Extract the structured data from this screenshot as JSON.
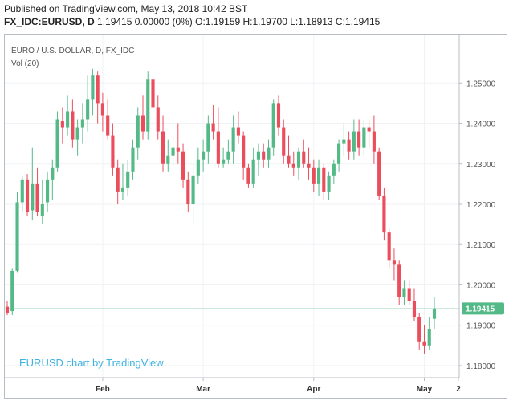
{
  "header": {
    "published": "Published on TradingView.com, May 13, 2018 10:42 BST",
    "symbol": "FX_IDC:EURUSD, D",
    "values": "1.19415 0.00000 (0%) O:1.19159 H:1.19700 L:1.18913 C:1.19415"
  },
  "chart": {
    "legend_title": "EURO / U.S. DOLLAR, D, FX_IDC",
    "legend_vol": "Vol (20)",
    "watermark": "EURUSD chart by TradingView",
    "price_badge": "1.19415"
  },
  "colors": {
    "up": "#53b987",
    "down": "#eb4d5c",
    "grid": "#f0f2f5",
    "watermark": "#3cb3e0"
  },
  "chart_data": {
    "type": "candlestick",
    "title": "EURO / U.S. DOLLAR, D, FX_IDC",
    "ylim": [
      1.177,
      1.262
    ],
    "y_ticks": [
      "1.25000",
      "1.24000",
      "1.23000",
      "1.22000",
      "1.21000",
      "1.20000",
      "1.19000",
      "1.18000"
    ],
    "x_ticks": [
      "Feb",
      "Mar",
      "Apr",
      "May",
      "2"
    ],
    "last_price": 1.19415,
    "candles": [
      [
        1.1946,
        1.196,
        1.1925,
        1.193
      ],
      [
        1.1935,
        1.204,
        1.1925,
        1.2035
      ],
      [
        1.2035,
        1.223,
        1.203,
        1.2205
      ],
      [
        1.2205,
        1.227,
        1.218,
        1.226
      ],
      [
        1.226,
        1.2275,
        1.217,
        1.218
      ],
      [
        1.2185,
        1.234,
        1.216,
        1.225
      ],
      [
        1.225,
        1.229,
        1.217,
        1.218
      ],
      [
        1.217,
        1.226,
        1.215,
        1.22
      ],
      [
        1.2205,
        1.228,
        1.218,
        1.226
      ],
      [
        1.226,
        1.231,
        1.221,
        1.229
      ],
      [
        1.229,
        1.243,
        1.228,
        1.241
      ],
      [
        1.2405,
        1.244,
        1.235,
        1.239
      ],
      [
        1.239,
        1.247,
        1.237,
        1.243
      ],
      [
        1.243,
        1.246,
        1.234,
        1.236
      ],
      [
        1.236,
        1.241,
        1.232,
        1.239
      ],
      [
        1.239,
        1.245,
        1.235,
        1.241
      ],
      [
        1.241,
        1.252,
        1.238,
        1.246
      ],
      [
        1.246,
        1.2535,
        1.242,
        1.252
      ],
      [
        1.252,
        1.253,
        1.24,
        1.245
      ],
      [
        1.245,
        1.2475,
        1.238,
        1.242
      ],
      [
        1.242,
        1.246,
        1.236,
        1.237
      ],
      [
        1.237,
        1.24,
        1.227,
        1.229
      ],
      [
        1.229,
        1.231,
        1.22,
        1.223
      ],
      [
        1.223,
        1.23,
        1.221,
        1.224
      ],
      [
        1.224,
        1.231,
        1.222,
        1.228
      ],
      [
        1.228,
        1.236,
        1.226,
        1.234
      ],
      [
        1.234,
        1.244,
        1.231,
        1.242
      ],
      [
        1.242,
        1.247,
        1.236,
        1.238
      ],
      [
        1.238,
        1.253,
        1.236,
        1.251
      ],
      [
        1.251,
        1.2555,
        1.242,
        1.244
      ],
      [
        1.244,
        1.247,
        1.236,
        1.238
      ],
      [
        1.238,
        1.242,
        1.228,
        1.23
      ],
      [
        1.23,
        1.236,
        1.228,
        1.232
      ],
      [
        1.232,
        1.237,
        1.229,
        1.234
      ],
      [
        1.234,
        1.24,
        1.23,
        1.233
      ],
      [
        1.233,
        1.235,
        1.224,
        1.226
      ],
      [
        1.226,
        1.228,
        1.218,
        1.22
      ],
      [
        1.22,
        1.23,
        1.215,
        1.227
      ],
      [
        1.227,
        1.234,
        1.225,
        1.231
      ],
      [
        1.231,
        1.236,
        1.228,
        1.233
      ],
      [
        1.233,
        1.242,
        1.23,
        1.24
      ],
      [
        1.24,
        1.2445,
        1.236,
        1.238
      ],
      [
        1.238,
        1.244,
        1.229,
        1.23
      ],
      [
        1.23,
        1.234,
        1.229,
        1.231
      ],
      [
        1.231,
        1.236,
        1.23,
        1.233
      ],
      [
        1.233,
        1.242,
        1.23,
        1.239
      ],
      [
        1.239,
        1.243,
        1.235,
        1.237
      ],
      [
        1.237,
        1.238,
        1.226,
        1.229
      ],
      [
        1.229,
        1.23,
        1.224,
        1.225
      ],
      [
        1.225,
        1.234,
        1.224,
        1.231
      ],
      [
        1.231,
        1.235,
        1.227,
        1.233
      ],
      [
        1.233,
        1.235,
        1.229,
        1.231
      ],
      [
        1.231,
        1.236,
        1.229,
        1.234
      ],
      [
        1.234,
        1.246,
        1.232,
        1.245
      ],
      [
        1.245,
        1.247,
        1.237,
        1.239
      ],
      [
        1.239,
        1.241,
        1.23,
        1.232
      ],
      [
        1.232,
        1.237,
        1.229,
        1.23
      ],
      [
        1.23,
        1.233,
        1.227,
        1.229
      ],
      [
        1.229,
        1.234,
        1.226,
        1.233
      ],
      [
        1.233,
        1.236,
        1.229,
        1.23
      ],
      [
        1.23,
        1.234,
        1.226,
        1.229
      ],
      [
        1.229,
        1.231,
        1.223,
        1.225
      ],
      [
        1.225,
        1.231,
        1.222,
        1.229
      ],
      [
        1.229,
        1.23,
        1.221,
        1.223
      ],
      [
        1.223,
        1.228,
        1.221,
        1.227
      ],
      [
        1.227,
        1.231,
        1.225,
        1.23
      ],
      [
        1.23,
        1.236,
        1.228,
        1.235
      ],
      [
        1.235,
        1.24,
        1.232,
        1.236
      ],
      [
        1.236,
        1.238,
        1.231,
        1.233
      ],
      [
        1.233,
        1.241,
        1.231,
        1.238
      ],
      [
        1.238,
        1.241,
        1.232,
        1.234
      ],
      [
        1.234,
        1.241,
        1.232,
        1.239
      ],
      [
        1.239,
        1.241,
        1.234,
        1.238
      ],
      [
        1.238,
        1.242,
        1.23,
        1.233
      ],
      [
        1.233,
        1.234,
        1.221,
        1.222
      ],
      [
        1.222,
        1.224,
        1.211,
        1.213
      ],
      [
        1.213,
        1.214,
        1.204,
        1.206
      ],
      [
        1.206,
        1.209,
        1.201,
        1.205
      ],
      [
        1.205,
        1.206,
        1.195,
        1.197
      ],
      [
        1.197,
        1.201,
        1.195,
        1.199
      ],
      [
        1.199,
        1.201,
        1.195,
        1.196
      ],
      [
        1.196,
        1.199,
        1.191,
        1.192
      ],
      [
        1.192,
        1.193,
        1.184,
        1.186
      ],
      [
        1.186,
        1.19,
        1.183,
        1.185
      ],
      [
        1.185,
        1.192,
        1.184,
        1.189
      ],
      [
        1.19159,
        1.197,
        1.18913,
        1.19415
      ]
    ]
  }
}
